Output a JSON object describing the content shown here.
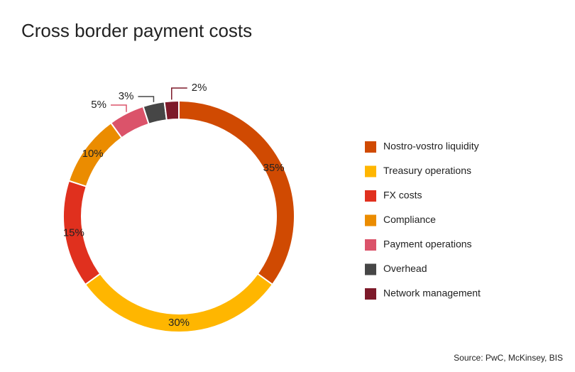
{
  "chart_data": {
    "type": "pie",
    "donut": true,
    "title": "Cross border payment costs",
    "source": "Source: PwC, McKinsey, BIS",
    "categories": [
      "Nostro-vostro liquidity",
      "Treasury operations",
      "FX costs",
      "Compliance",
      "Payment operations",
      "Overhead",
      "Network management"
    ],
    "values": [
      35,
      30,
      15,
      10,
      5,
      3,
      2
    ],
    "value_labels": [
      "35%",
      "30%",
      "15%",
      "10%",
      "5%",
      "3%",
      "2%"
    ],
    "colors": [
      "#d04a02",
      "#ffb600",
      "#e0301e",
      "#eb8c00",
      "#db536a",
      "#464646",
      "#7d1a2a"
    ],
    "legend": "right"
  }
}
